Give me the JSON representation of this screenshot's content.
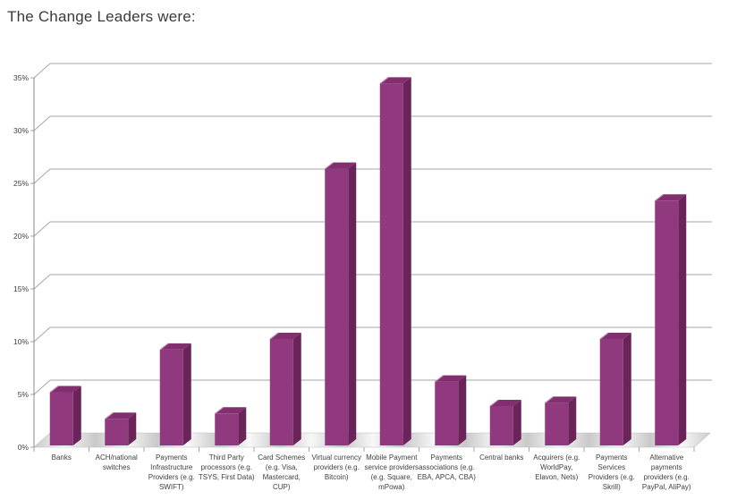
{
  "page": {
    "title": "The Change Leaders were:"
  },
  "chart_data": {
    "type": "bar",
    "style": "3d-column",
    "title": "The Change Leaders were:",
    "xlabel": "",
    "ylabel": "",
    "unit": "%",
    "ylim": [
      0,
      35
    ],
    "ytick_step": 5,
    "ytick_labels": [
      "0%",
      "5%",
      "10%",
      "15%",
      "20%",
      "25%",
      "30%",
      "35%"
    ],
    "grid": true,
    "legend": "none",
    "categories": [
      "Banks",
      "ACH/national switches",
      "Payments Infrastructure Providers (e.g. SWIFT)",
      "Third Party processors (e.g. TSYS, First Data)",
      "Card Schemes (e.g. Visa, Mastercard, CUP)",
      "Virtual currency providers (e.g. Bitcoin)",
      "Mobile Payment service providers (e.g. Square, mPowa)",
      "Payments associations (e.g. EBA, APCA, CBA)",
      "Central banks",
      "Acquirers (e.g. WorldPay, Elavon, Nets)",
      "Payments Services Providers (e.g. Skrill)",
      "Alternative payments providers (e.g. PayPal, AliPay)"
    ],
    "category_tick_lines": [
      "Banks",
      "ACH/national\nswitches",
      "Payments\nInfrastructure\nProviders (e.g.\nSWIFT)",
      "Third Party\nprocessors (e.g.\nTSYS, First Data)",
      "Card Schemes\n(e.g. Visa,\nMastercard,\nCUP)",
      "Virtual currency\nproviders (e.g.\nBitcoin)",
      "Mobile Payment\nservice providers\n(e.g. Square,\nmPowa)",
      "Payments\nassociations (e.g.\nEBA, APCA, CBA)",
      "Central banks",
      "Acquirers (e.g.\nWorldPay,\nElavon, Nets)",
      "Payments\nServices\nProviders (e.g.\nSkrill)",
      "Alternative\npayments\nproviders (e.g.\nPayPal, AliPay)"
    ],
    "values": [
      5,
      2.5,
      9,
      3,
      10,
      26,
      34,
      6,
      3.7,
      4,
      10,
      23
    ],
    "colors": {
      "bar_front": "#91397e",
      "bar_top": "#822f70",
      "bar_side": "#6a2459",
      "bar_bevel": "#c489b1",
      "gridline": "#a6a6a6",
      "axis": "#8c8c8c",
      "floor_light": "#f8f8f8",
      "floor_dark": "#c9c9c9",
      "floor_edge": "#bdbdbd",
      "text": "#3f3f3f"
    }
  }
}
